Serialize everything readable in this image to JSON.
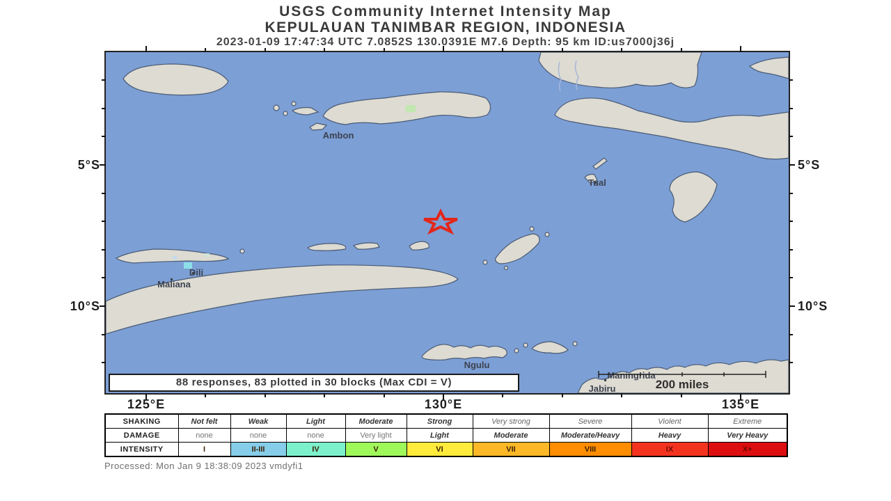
{
  "header": {
    "line1": "USGS Community Internet Intensity Map",
    "line2": "KEPULAUAN TANIMBAR REGION, INDONESIA",
    "line3": "2023-01-09 17:47:34 UTC 7.0852S 130.0391E M7.6 Depth: 95 km ID:us7000j36j"
  },
  "map": {
    "ocean_color": "#7C9FD5",
    "land_color": "#DDDBD2",
    "epicenter_color": "#E3261A",
    "cities": [
      {
        "name": "Ambon"
      },
      {
        "name": "Tual"
      },
      {
        "name": "Dili"
      },
      {
        "name": "Maliana"
      },
      {
        "name": "Ngulu"
      },
      {
        "name": "Maningrida"
      },
      {
        "name": "Jabiru"
      }
    ],
    "responses_note": "88 responses, 83 plotted in 30 blocks (Max CDI = V)",
    "scale_label": "200 miles",
    "lat_labels": [
      "5°S",
      "10°S"
    ],
    "lon_labels": [
      "125°E",
      "130°E",
      "135°E"
    ]
  },
  "legend": {
    "row_headers": {
      "shaking": "SHAKING",
      "damage": "DAMAGE",
      "intensity": "INTENSITY"
    },
    "shaking": [
      "Not felt",
      "Weak",
      "Light",
      "Moderate",
      "Strong",
      "Very strong",
      "Severe",
      "Violent",
      "Extreme"
    ],
    "damage": [
      "none",
      "none",
      "none",
      "Very light",
      "Light",
      "Moderate",
      "Moderate/Heavy",
      "Heavy",
      "Very Heavy"
    ],
    "intensity": [
      "I",
      "II-III",
      "IV",
      "V",
      "VI",
      "VII",
      "VIII",
      "IX",
      "X+"
    ],
    "colors": [
      "#FFFFFF",
      "#86CDEA",
      "#7CF0CB",
      "#9FF85A",
      "#FFEB3B",
      "#FDB827",
      "#FE8D01",
      "#F4331F",
      "#DC0E10"
    ]
  },
  "footer": {
    "processed": "Processed: Mon Jan 9 18:38:09 2023 vmdyfi1"
  }
}
